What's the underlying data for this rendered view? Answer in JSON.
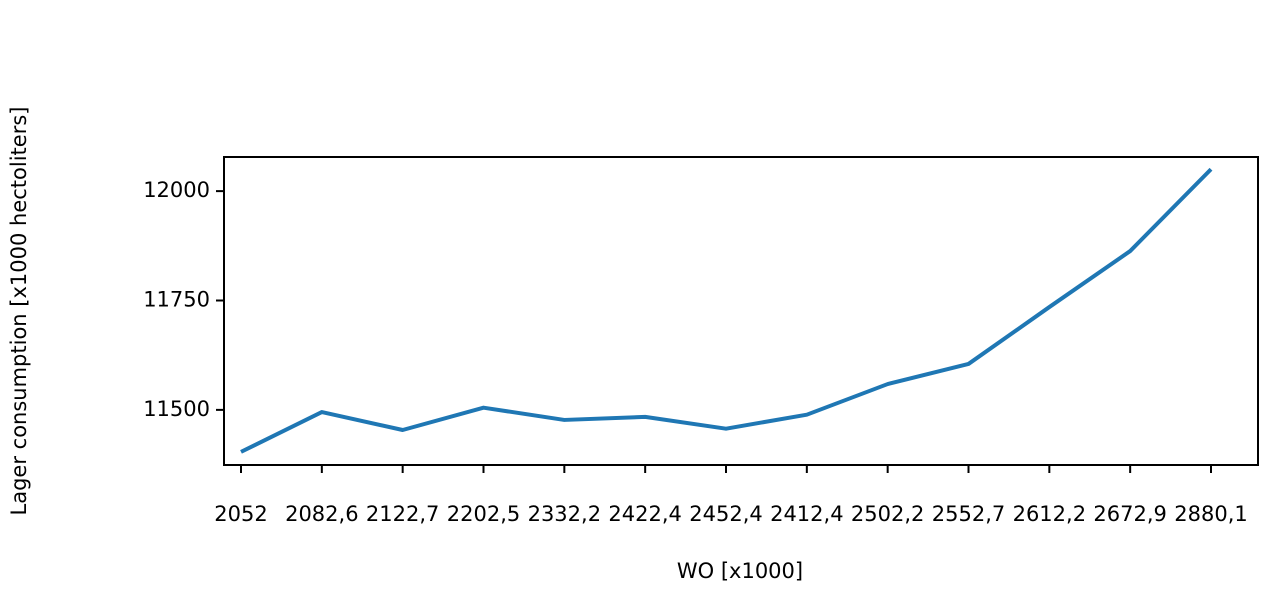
{
  "chart_data": {
    "type": "line",
    "x_label": "WO [x1000]",
    "y_label": "Lager consumption [x1000 hectoliters]",
    "categories": [
      "2052",
      "2082,6",
      "2122,7",
      "2202,5",
      "2332,2",
      "2422,4",
      "2452,4",
      "2412,4",
      "2502,2",
      "2552,7",
      "2612,2",
      "2672,9",
      "2880,1"
    ],
    "series": [
      {
        "color": "#1f77b4",
        "values": [
          11404,
          11495,
          11454,
          11505,
          11477,
          11484,
          11457,
          11489,
          11559,
          11605,
          11735,
          11863,
          12050
        ]
      }
    ],
    "ylim": [
      11374,
      12078
    ],
    "yticks": [
      11500,
      11750,
      12000
    ]
  }
}
